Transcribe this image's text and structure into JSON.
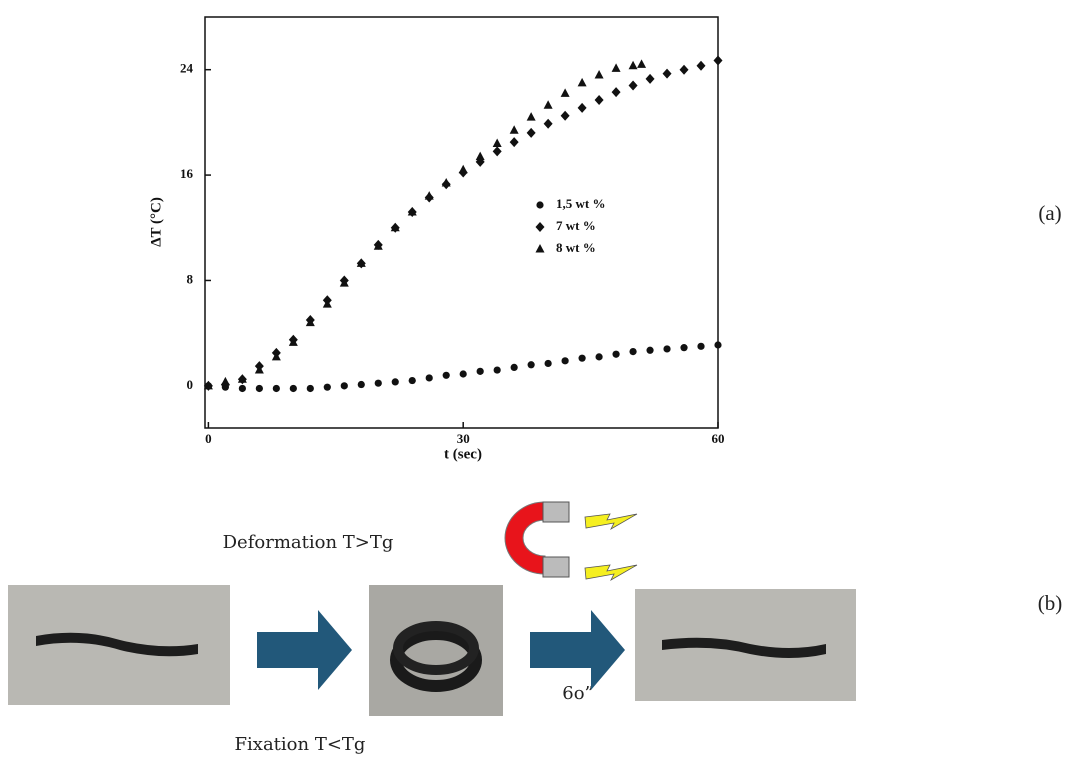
{
  "chart_data": {
    "type": "scatter",
    "xlabel": "t (sec)",
    "ylabel": "ΔT (°C)",
    "xlim": [
      -0.4,
      60
    ],
    "ylim": [
      -3.2,
      28
    ],
    "xticks": [
      0,
      30,
      60
    ],
    "yticks": [
      0,
      8,
      16,
      24
    ],
    "legend": "right",
    "series": [
      {
        "name": "1,5 wt %",
        "color": "#111111",
        "marker": "circle",
        "x": [
          0,
          2,
          4,
          6,
          8,
          10,
          12,
          14,
          16,
          18,
          20,
          22,
          24,
          26,
          28,
          30,
          32,
          34,
          36,
          38,
          40,
          42,
          44,
          46,
          48,
          50,
          52,
          54,
          56,
          58,
          60
        ],
        "values": [
          0,
          -0.1,
          -0.2,
          -0.2,
          -0.2,
          -0.2,
          -0.2,
          -0.1,
          0,
          0.1,
          0.2,
          0.3,
          0.4,
          0.6,
          0.8,
          0.9,
          1.1,
          1.2,
          1.4,
          1.6,
          1.7,
          1.9,
          2.1,
          2.2,
          2.4,
          2.6,
          2.7,
          2.8,
          2.9,
          3.0,
          3.1
        ]
      },
      {
        "name": "7 wt %",
        "color": "#111111",
        "marker": "diamond",
        "x": [
          0,
          2,
          4,
          6,
          8,
          10,
          12,
          14,
          16,
          18,
          20,
          22,
          24,
          26,
          28,
          30,
          32,
          34,
          36,
          38,
          40,
          42,
          44,
          46,
          48,
          50,
          52,
          54,
          56,
          58,
          60
        ],
        "values": [
          0,
          0.1,
          0.5,
          1.5,
          2.5,
          3.5,
          5,
          6.5,
          8,
          9.3,
          10.7,
          12,
          13.2,
          14.3,
          15.3,
          16.2,
          17,
          17.8,
          18.5,
          19.2,
          19.9,
          20.5,
          21.1,
          21.7,
          22.3,
          22.8,
          23.3,
          23.7,
          24,
          24.3,
          24.7
        ]
      },
      {
        "name": "8 wt %",
        "color": "#111111",
        "marker": "triangle",
        "x": [
          0,
          2,
          4,
          6,
          8,
          10,
          12,
          14,
          16,
          18,
          20,
          22,
          24,
          26,
          28,
          30,
          32,
          34,
          36,
          38,
          40,
          42,
          44,
          46,
          48,
          50,
          51
        ],
        "values": [
          0,
          0.3,
          0.5,
          1.2,
          2.2,
          3.3,
          4.8,
          6.2,
          7.8,
          9.3,
          10.6,
          12,
          13.2,
          14.4,
          15.4,
          16.4,
          17.4,
          18.4,
          19.4,
          20.4,
          21.3,
          22.2,
          23,
          23.6,
          24.1,
          24.3,
          24.4
        ]
      }
    ]
  },
  "panel_labels": [
    "(a)",
    "(b)"
  ],
  "diagram": {
    "top_label": "Deformation T>Tg",
    "bottom_label": "Fixation T<Tg",
    "time_label": "6o”"
  }
}
